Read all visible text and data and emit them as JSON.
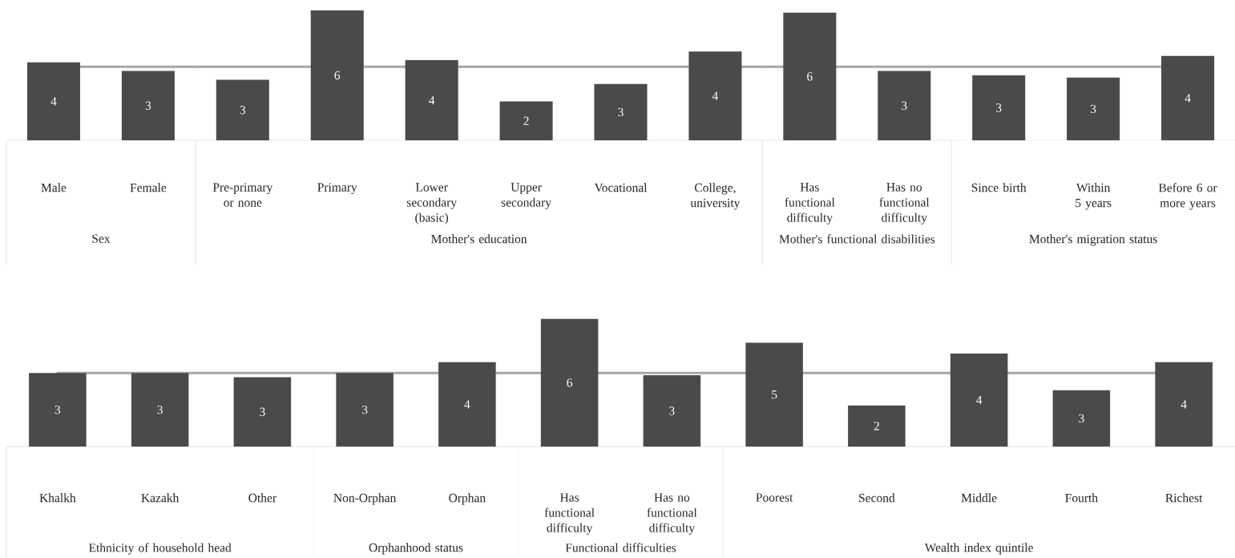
{
  "chart_data": [
    {
      "type": "bar",
      "xlabel": "Sex",
      "categories": [
        "Male",
        "Female"
      ],
      "values": [
        3.6,
        3.2
      ],
      "value_labels": [
        "4",
        "3"
      ],
      "color": "#4a4a4a",
      "ref_lines": [
        {
          "axis": "y",
          "value": 3.4,
          "color": "#a6a6a6"
        }
      ]
    },
    {
      "type": "bar",
      "xlabel": "Mother's education",
      "categories": [
        "Pre-primary or none",
        "Primary",
        "Lower secondary (basic)",
        "Upper secondary",
        "Vocational",
        "College, university"
      ],
      "values": [
        2.8,
        6.0,
        3.7,
        1.8,
        2.6,
        4.1
      ],
      "value_labels": [
        "3",
        "6",
        "4",
        "2",
        "3",
        "4"
      ],
      "color": "#4a4a4a",
      "ref_lines": [
        {
          "axis": "y",
          "value": 3.4,
          "color": "#a6a6a6"
        }
      ]
    },
    {
      "type": "bar",
      "xlabel": "Mother's functional disabilities",
      "categories": [
        "Has functional difficulty",
        "Has no functional difficulty"
      ],
      "values": [
        5.9,
        3.2
      ],
      "value_labels": [
        "6",
        "3"
      ],
      "color": "#4a4a4a",
      "ref_lines": [
        {
          "axis": "y",
          "value": 3.4,
          "color": "#a6a6a6"
        }
      ]
    },
    {
      "type": "bar",
      "xlabel": "Mother's migration status",
      "categories": [
        "Since birth",
        "Within 5 years",
        "Before 6 or more years"
      ],
      "values": [
        3.0,
        2.9,
        3.9
      ],
      "value_labels": [
        "3",
        "3",
        "4"
      ],
      "color": "#4a4a4a",
      "ref_lines": [
        {
          "axis": "y",
          "value": 3.4,
          "color": "#a6a6a6"
        }
      ]
    },
    {
      "type": "bar",
      "xlabel": "Ethnicity of household head",
      "categories": [
        "Khalkh",
        "Kazakh",
        "Other"
      ],
      "values": [
        3.4,
        3.4,
        3.2
      ],
      "value_labels": [
        "3",
        "3",
        "3"
      ],
      "color": "#4a4a4a",
      "ref_lines": [
        {
          "axis": "y",
          "value": 3.4,
          "color": "#a6a6a6"
        }
      ]
    },
    {
      "type": "bar",
      "xlabel": "Orphanhood status",
      "categories": [
        "Non-Orphan",
        "Orphan"
      ],
      "values": [
        3.4,
        3.9
      ],
      "value_labels": [
        "3",
        "4"
      ],
      "color": "#4a4a4a",
      "ref_lines": [
        {
          "axis": "y",
          "value": 3.4,
          "color": "#a6a6a6"
        }
      ]
    },
    {
      "type": "bar",
      "xlabel": "Functional difficulties",
      "categories": [
        "Has functional difficulty",
        "Has no functional difficulty"
      ],
      "values": [
        5.9,
        3.3
      ],
      "value_labels": [
        "6",
        "3"
      ],
      "color": "#4a4a4a",
      "ref_lines": [
        {
          "axis": "y",
          "value": 3.4,
          "color": "#a6a6a6"
        }
      ]
    },
    {
      "type": "bar",
      "xlabel": "Wealth index quintile",
      "categories": [
        "Poorest",
        "Second",
        "Middle",
        "Fourth",
        "Richest"
      ],
      "values": [
        4.8,
        1.9,
        4.3,
        2.6,
        3.9
      ],
      "value_labels": [
        "5",
        "2",
        "4",
        "3",
        "4"
      ],
      "color": "#4a4a4a",
      "ref_lines": [
        {
          "axis": "y",
          "value": 3.4,
          "color": "#a6a6a6"
        }
      ]
    }
  ]
}
